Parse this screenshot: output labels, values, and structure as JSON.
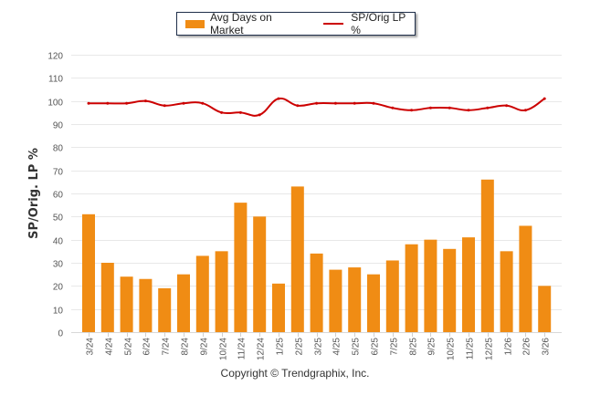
{
  "chart_data": {
    "type": "bar",
    "title": "",
    "xlabel": "",
    "ylabel": "SP/Orig. LP %",
    "ylim": [
      0,
      120
    ],
    "yticks": [
      0,
      10,
      20,
      30,
      40,
      50,
      60,
      70,
      80,
      90,
      100,
      110,
      120
    ],
    "grid": true,
    "legend_position": "top-center",
    "categories": [
      "3/24",
      "4/24",
      "5/24",
      "6/24",
      "7/24",
      "8/24",
      "9/24",
      "10/24",
      "11/24",
      "12/24",
      "1/25",
      "2/25",
      "3/25",
      "4/25",
      "5/25",
      "6/25",
      "7/25",
      "8/25",
      "9/25",
      "10/25",
      "11/25",
      "12/25",
      "1/26",
      "2/26",
      "3/26"
    ],
    "series": [
      {
        "name": "Avg Days on Market",
        "type": "bar",
        "color": "#f08c14",
        "values": [
          51,
          30,
          24,
          23,
          19,
          25,
          33,
          35,
          56,
          50,
          21,
          63,
          34,
          27,
          28,
          25,
          31,
          38,
          40,
          36,
          41,
          66,
          35,
          46,
          20
        ]
      },
      {
        "name": "SP/Orig LP %",
        "type": "line",
        "color": "#cc0000",
        "values": [
          99,
          99,
          99,
          100,
          98,
          99,
          99,
          95,
          95,
          94,
          101,
          98,
          99,
          99,
          99,
          99,
          97,
          96,
          97,
          97,
          96,
          97,
          98,
          96,
          101
        ]
      }
    ]
  },
  "footer": {
    "copyright": "Copyright © Trendgraphix, Inc."
  }
}
